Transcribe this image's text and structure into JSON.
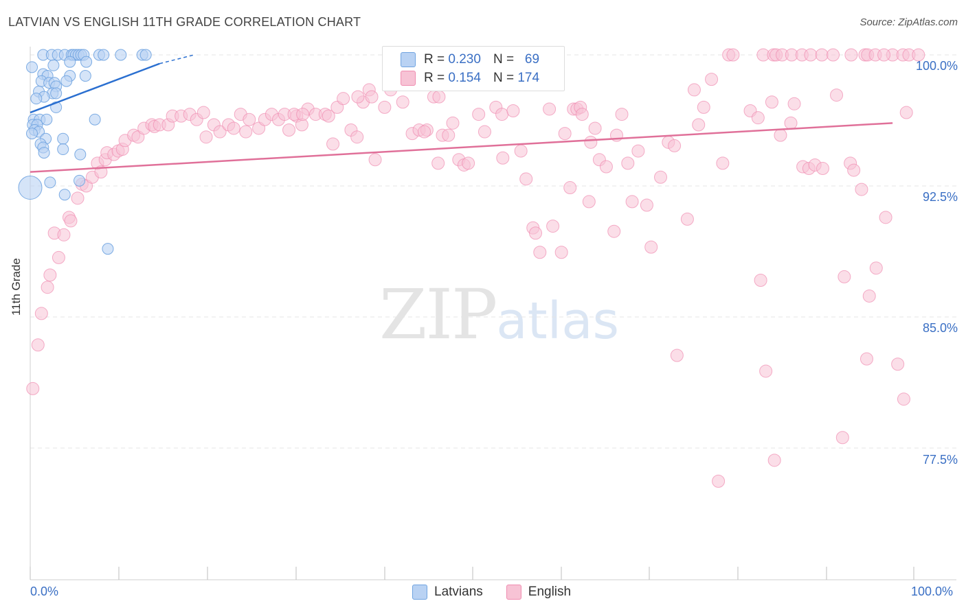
{
  "title": "LATVIAN VS ENGLISH 11TH GRADE CORRELATION CHART",
  "source": "Source: ZipAtlas.com",
  "watermark": {
    "zip": "ZIP",
    "atlas": "atlas"
  },
  "legend_top": {
    "latvians": {
      "r_label": "R =",
      "r": "0.230",
      "n_label": "N =",
      "n": "69"
    },
    "english": {
      "r_label": "R =",
      "r": "0.154",
      "n_label": "N =",
      "n": "174"
    }
  },
  "legend_bottom": {
    "latvians": "Latvians",
    "english": "English"
  },
  "colors": {
    "latvians": "#6fa3e0",
    "latvians_fill": "#b9d2f3",
    "latvians_line": "#2a6fd0",
    "english": "#f08cb0",
    "english_fill": "#f7c3d5",
    "english_line": "#e07099",
    "axis_text": "#3a6fc4"
  },
  "chart_data": {
    "type": "scatter",
    "title": "LATVIAN VS ENGLISH 11TH GRADE CORRELATION CHART",
    "xlabel": "",
    "ylabel": "11th Grade",
    "xlim": [
      0,
      100
    ],
    "ylim": [
      71.0,
      101.5
    ],
    "x_tick_labels": [
      "0.0%",
      "100.0%"
    ],
    "y_ticks": [
      100.0,
      92.5,
      85.0,
      77.5
    ],
    "y_tick_labels": [
      "100.0%",
      "92.5%",
      "85.0%",
      "77.5%"
    ],
    "series": [
      {
        "name": "Latvians",
        "trend": {
          "x0": 0,
          "y0": 96.7,
          "x1": 15,
          "y1": 99.5,
          "dashed_to_x": 19,
          "dashed_to_y": 100.0
        },
        "points": [
          [
            1.5,
            100
          ],
          [
            2.5,
            100
          ],
          [
            3.2,
            100
          ],
          [
            4.0,
            100
          ],
          [
            4.8,
            100
          ],
          [
            5.0,
            100
          ],
          [
            5.3,
            100
          ],
          [
            5.6,
            100
          ],
          [
            5.9,
            100
          ],
          [
            6.2,
            100
          ],
          [
            8.0,
            100
          ],
          [
            8.5,
            100
          ],
          [
            10.5,
            100
          ],
          [
            13.0,
            100
          ],
          [
            13.4,
            100
          ],
          [
            0.2,
            99.3
          ],
          [
            2.7,
            99.4
          ],
          [
            4.6,
            99.6
          ],
          [
            6.5,
            99.6
          ],
          [
            1.5,
            98.9
          ],
          [
            2.0,
            98.8
          ],
          [
            4.6,
            98.8
          ],
          [
            6.4,
            98.8
          ],
          [
            1.3,
            98.5
          ],
          [
            2.2,
            98.4
          ],
          [
            2.8,
            98.4
          ],
          [
            4.2,
            98.5
          ],
          [
            3.0,
            98.2
          ],
          [
            1.0,
            97.9
          ],
          [
            2.6,
            97.8
          ],
          [
            3.0,
            97.8
          ],
          [
            1.6,
            97.6
          ],
          [
            0.7,
            97.5
          ],
          [
            3.0,
            97.0
          ],
          [
            0.4,
            96.3
          ],
          [
            1.1,
            96.3
          ],
          [
            1.9,
            96.3
          ],
          [
            7.5,
            96.3
          ],
          [
            0.3,
            96.0
          ],
          [
            0.8,
            96.0
          ],
          [
            0.5,
            95.7
          ],
          [
            1.0,
            95.6
          ],
          [
            0.2,
            95.5
          ],
          [
            1.8,
            95.2
          ],
          [
            3.8,
            95.2
          ],
          [
            1.2,
            94.9
          ],
          [
            1.5,
            94.7
          ],
          [
            3.8,
            94.6
          ],
          [
            1.6,
            94.4
          ],
          [
            5.8,
            94.3
          ],
          [
            5.7,
            92.8
          ],
          [
            2.3,
            92.7
          ],
          [
            0.0,
            92.4
          ],
          [
            4.0,
            92.0
          ],
          [
            9.0,
            88.9
          ]
        ]
      },
      {
        "name": "English",
        "trend": {
          "x0": 0,
          "y0": 93.3,
          "x1": 100,
          "y1": 96.1
        },
        "points": [
          [
            0.3,
            80.9
          ],
          [
            0.9,
            83.4
          ],
          [
            1.3,
            85.2
          ],
          [
            2.0,
            86.7
          ],
          [
            2.3,
            87.4
          ],
          [
            3.3,
            88.4
          ],
          [
            2.8,
            89.8
          ],
          [
            3.9,
            89.7
          ],
          [
            4.5,
            90.7
          ],
          [
            4.7,
            90.5
          ],
          [
            5.5,
            91.8
          ],
          [
            6.0,
            92.6
          ],
          [
            6.5,
            92.5
          ],
          [
            7.2,
            93.0
          ],
          [
            7.8,
            93.8
          ],
          [
            8.2,
            93.3
          ],
          [
            8.7,
            94.0
          ],
          [
            8.9,
            94.4
          ],
          [
            9.7,
            94.3
          ],
          [
            10.2,
            94.5
          ],
          [
            10.7,
            94.6
          ],
          [
            11.0,
            95.1
          ],
          [
            12.0,
            95.4
          ],
          [
            12.5,
            95.3
          ],
          [
            13.2,
            95.8
          ],
          [
            14.1,
            96.0
          ],
          [
            14.4,
            95.9
          ],
          [
            15.0,
            96.0
          ],
          [
            16.0,
            96.0
          ],
          [
            16.5,
            96.5
          ],
          [
            17.5,
            96.5
          ],
          [
            18.5,
            96.6
          ],
          [
            19.3,
            96.3
          ],
          [
            20.1,
            96.7
          ],
          [
            20.4,
            95.3
          ],
          [
            21.3,
            96.0
          ],
          [
            22.0,
            95.6
          ],
          [
            23.0,
            96.0
          ],
          [
            23.6,
            95.8
          ],
          [
            24.4,
            96.6
          ],
          [
            25.0,
            95.6
          ],
          [
            25.4,
            96.3
          ],
          [
            26.5,
            95.8
          ],
          [
            27.2,
            96.3
          ],
          [
            28.0,
            96.6
          ],
          [
            28.8,
            96.3
          ],
          [
            29.5,
            96.6
          ],
          [
            30.0,
            95.7
          ],
          [
            30.9,
            96.5
          ],
          [
            31.5,
            96.0
          ],
          [
            32.2,
            96.9
          ],
          [
            33.1,
            96.6
          ],
          [
            34.2,
            96.6
          ],
          [
            30.6,
            96.6
          ],
          [
            31.6,
            96.6
          ],
          [
            34.6,
            96.5
          ],
          [
            35.6,
            97.0
          ],
          [
            36.3,
            97.5
          ],
          [
            35.1,
            94.9
          ],
          [
            37.2,
            95.7
          ],
          [
            37.9,
            95.3
          ],
          [
            38.6,
            97.3
          ],
          [
            39.3,
            98.0
          ],
          [
            38.0,
            97.6
          ],
          [
            39.6,
            97.6
          ],
          [
            41.1,
            97.0
          ],
          [
            41.8,
            98.0
          ],
          [
            40.0,
            94.0
          ],
          [
            42.5,
            98.4
          ],
          [
            43.2,
            97.3
          ],
          [
            44.3,
            95.5
          ],
          [
            45.1,
            95.7
          ],
          [
            46.0,
            95.7
          ],
          [
            45.7,
            95.6
          ],
          [
            46.8,
            97.6
          ],
          [
            47.4,
            97.6
          ],
          [
            47.3,
            93.8
          ],
          [
            47.8,
            95.4
          ],
          [
            48.5,
            95.4
          ],
          [
            49.0,
            96.1
          ],
          [
            49.7,
            94.0
          ],
          [
            50.3,
            93.7
          ],
          [
            50.8,
            93.8
          ],
          [
            52.0,
            96.6
          ],
          [
            52.7,
            95.6
          ],
          [
            53.3,
            98.5
          ],
          [
            54.0,
            97.0
          ],
          [
            54.7,
            96.6
          ],
          [
            54.8,
            94.1
          ],
          [
            56.0,
            96.8
          ],
          [
            56.9,
            94.5
          ],
          [
            57.5,
            92.9
          ],
          [
            58.3,
            90.1
          ],
          [
            58.6,
            89.8
          ],
          [
            59.1,
            88.7
          ],
          [
            60.2,
            96.9
          ],
          [
            60.6,
            90.2
          ],
          [
            61.6,
            88.7
          ],
          [
            62.0,
            95.5
          ],
          [
            62.6,
            92.4
          ],
          [
            63.0,
            96.9
          ],
          [
            63.4,
            96.9
          ],
          [
            63.8,
            97.0
          ],
          [
            64.0,
            96.6
          ],
          [
            64.8,
            91.6
          ],
          [
            65.0,
            95.0
          ],
          [
            65.5,
            95.8
          ],
          [
            66.0,
            94.0
          ],
          [
            66.8,
            93.6
          ],
          [
            67.7,
            89.9
          ],
          [
            68.0,
            95.4
          ],
          [
            68.6,
            96.6
          ],
          [
            69.3,
            93.8
          ],
          [
            69.8,
            91.6
          ],
          [
            70.5,
            94.5
          ],
          [
            71.5,
            91.4
          ],
          [
            72.0,
            89.0
          ],
          [
            73.1,
            93.0
          ],
          [
            74.0,
            95.0
          ],
          [
            74.7,
            94.8
          ],
          [
            75.0,
            82.8
          ],
          [
            76.2,
            90.6
          ],
          [
            77.0,
            98.0
          ],
          [
            77.5,
            96.0
          ],
          [
            78.1,
            97.0
          ],
          [
            79.0,
            98.6
          ],
          [
            79.8,
            75.6
          ],
          [
            80.3,
            93.8
          ],
          [
            81.0,
            100
          ],
          [
            81.5,
            100
          ],
          [
            85.0,
            100
          ],
          [
            86.2,
            100
          ],
          [
            86.5,
            100
          ],
          [
            87.2,
            100
          ],
          [
            88.3,
            100
          ],
          [
            89.5,
            100
          ],
          [
            90.5,
            100
          ],
          [
            91.8,
            100
          ],
          [
            93.1,
            100
          ],
          [
            95.2,
            100
          ],
          [
            96.8,
            100
          ],
          [
            97.1,
            100
          ],
          [
            100,
            100
          ],
          [
            98.0,
            100
          ],
          [
            99.0,
            100
          ],
          [
            101.2,
            100
          ],
          [
            101.9,
            100
          ],
          [
            103.0,
            100
          ],
          [
            83.5,
            96.8
          ],
          [
            84.4,
            96.4
          ],
          [
            86.0,
            97.3
          ],
          [
            87.0,
            95.4
          ],
          [
            88.6,
            97.2
          ],
          [
            89.6,
            93.6
          ],
          [
            90.3,
            93.5
          ],
          [
            91.0,
            93.7
          ],
          [
            91.9,
            93.5
          ],
          [
            93.5,
            97.7
          ],
          [
            95.1,
            93.8
          ],
          [
            96.4,
            92.3
          ],
          [
            95.5,
            93.4
          ],
          [
            101.6,
            96.7
          ],
          [
            94.4,
            87.3
          ],
          [
            94.2,
            78.1
          ],
          [
            97.3,
            86.2
          ],
          [
            97.0,
            82.6
          ],
          [
            98.1,
            87.8
          ],
          [
            99.2,
            90.7
          ],
          [
            100.6,
            82.3
          ],
          [
            101.3,
            80.3
          ],
          [
            84.7,
            87.1
          ],
          [
            85.3,
            81.9
          ],
          [
            86.3,
            76.8
          ],
          [
            88.2,
            96.1
          ]
        ]
      }
    ]
  }
}
